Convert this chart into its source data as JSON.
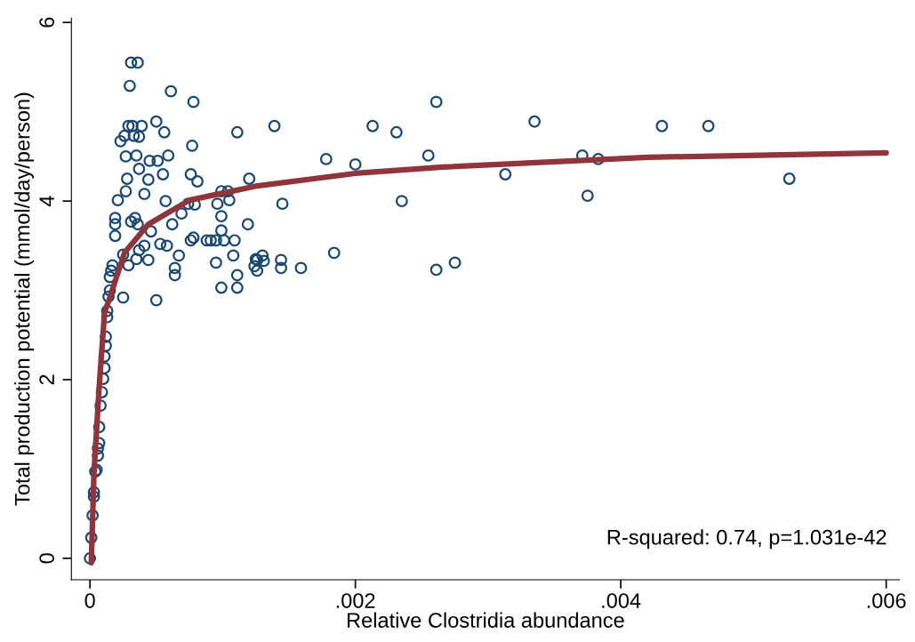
{
  "chart_data": {
    "type": "scatter",
    "xlabel": "Relative Clostridia abundance",
    "ylabel": "Total production potential (mmol/day/person)",
    "xlim": [
      -0.00014,
      0.0061
    ],
    "ylim": [
      -0.24,
      6.05
    ],
    "xticks": [
      0,
      {
        "value": 0.002,
        "label": ".002"
      },
      {
        "value": 0.004,
        "label": ".004"
      },
      {
        "value": 0.006,
        "label": ".006"
      }
    ],
    "yticks": [
      0,
      2,
      4,
      6
    ],
    "grid": false,
    "legend": false,
    "marker": "circle",
    "annotations": [
      "R-squared: 0.74, p=1.031e-42"
    ],
    "series": [
      {
        "color": "#1a476f",
        "x": [
          0,
          1e-05,
          2e-05,
          3e-05,
          3e-05,
          4e-05,
          5e-05,
          6e-05,
          6e-05,
          7e-05,
          7e-05,
          8e-05,
          9e-05,
          0.0001,
          0.00011,
          0.00011,
          0.00012,
          0.00012,
          0.00013,
          0.00013,
          0.00014,
          0.00015,
          0.00015,
          0.00016,
          0.00017,
          0.00031,
          0.00036,
          0.0003,
          0.00061,
          0.00078,
          0.0005,
          0.00029,
          0.00032,
          0.00039,
          0.00056,
          0.00023,
          0.00026,
          0.00033,
          0.00037,
          0.00111,
          0.00077,
          0.00027,
          0.00035,
          0.00045,
          0.00051,
          0.00059,
          0.00037,
          0.00028,
          0.00044,
          0.00055,
          0.00076,
          0.00081,
          0.0012,
          0.00027,
          0.00041,
          0.00021,
          0.00057,
          0.00074,
          0.00079,
          0.00096,
          0.00099,
          0.00104,
          0.00105,
          0.00019,
          0.00019,
          0.00019,
          0.00031,
          0.00034,
          0.00036,
          0.00046,
          0.00062,
          0.00069,
          0.00099,
          0.00099,
          0.00119,
          0.00076,
          0.00078,
          0.00088,
          0.00091,
          0.00095,
          0.00101,
          0.00109,
          0.00025,
          0.00037,
          0.00041,
          0.00035,
          0.00029,
          0.00044,
          0.00053,
          0.00058,
          0.00067,
          0.00064,
          0.00064,
          0.00095,
          0.00108,
          0.00111,
          0.00099,
          0.00111,
          0.00124,
          0.00125,
          0.00025,
          0.0005,
          0.00139,
          0.00213,
          0.00231,
          0.00261,
          0.00178,
          0.002,
          0.00255,
          0.00145,
          0.00235,
          0.00126,
          0.0013,
          0.00131,
          0.00144,
          0.00126,
          0.00144,
          0.00159,
          0.00184,
          0.00261,
          0.00275,
          0.00335,
          0.00431,
          0.00466,
          0.00371,
          0.00383,
          0.00313,
          0.00375,
          0.00527
        ],
        "values": [
          0,
          0.23,
          0.48,
          0.69,
          0.74,
          0.97,
          0.99,
          1.15,
          1.23,
          1.29,
          1.47,
          1.71,
          1.86,
          2.01,
          2.13,
          2.26,
          2.38,
          2.48,
          2.7,
          2.77,
          2.93,
          3.0,
          3.15,
          3.22,
          3.28,
          5.55,
          5.55,
          5.29,
          5.23,
          5.11,
          4.89,
          4.84,
          4.84,
          4.84,
          4.77,
          4.67,
          4.73,
          4.73,
          4.72,
          4.77,
          4.62,
          4.5,
          4.51,
          4.45,
          4.45,
          4.51,
          4.36,
          4.25,
          4.24,
          4.3,
          4.3,
          4.22,
          4.25,
          4.11,
          4.08,
          4.01,
          4.0,
          3.97,
          3.96,
          3.97,
          4.11,
          4.11,
          4.01,
          3.81,
          3.74,
          3.61,
          3.77,
          3.81,
          3.74,
          3.66,
          3.74,
          3.86,
          3.83,
          3.67,
          3.74,
          3.56,
          3.59,
          3.56,
          3.56,
          3.56,
          3.56,
          3.56,
          3.4,
          3.45,
          3.5,
          3.35,
          3.28,
          3.34,
          3.52,
          3.5,
          3.39,
          3.25,
          3.17,
          3.31,
          3.39,
          3.17,
          3.03,
          3.03,
          3.27,
          3.35,
          2.92,
          2.89,
          4.84,
          4.84,
          4.77,
          5.11,
          4.47,
          4.41,
          4.51,
          3.97,
          4.0,
          3.34,
          3.39,
          3.33,
          3.34,
          3.22,
          3.25,
          3.25,
          3.42,
          3.23,
          3.31,
          4.89,
          4.84,
          4.84,
          4.51,
          4.47,
          4.3,
          4.06,
          4.25
        ]
      },
      {
        "type": "line",
        "color": "#90353b",
        "line_style": "solid",
        "marker": "none",
        "x": [
          1e-05,
          3e-05,
          7e-05,
          0.00011,
          0.00015,
          0.00026,
          0.00044,
          0.00075,
          0.00126,
          0.002,
          0.00266,
          0.00421,
          0.006
        ],
        "values": [
          -0.05,
          0.94,
          1.93,
          2.75,
          2.92,
          3.42,
          3.74,
          4.01,
          4.17,
          4.31,
          4.38,
          4.49,
          4.54
        ]
      }
    ]
  }
}
